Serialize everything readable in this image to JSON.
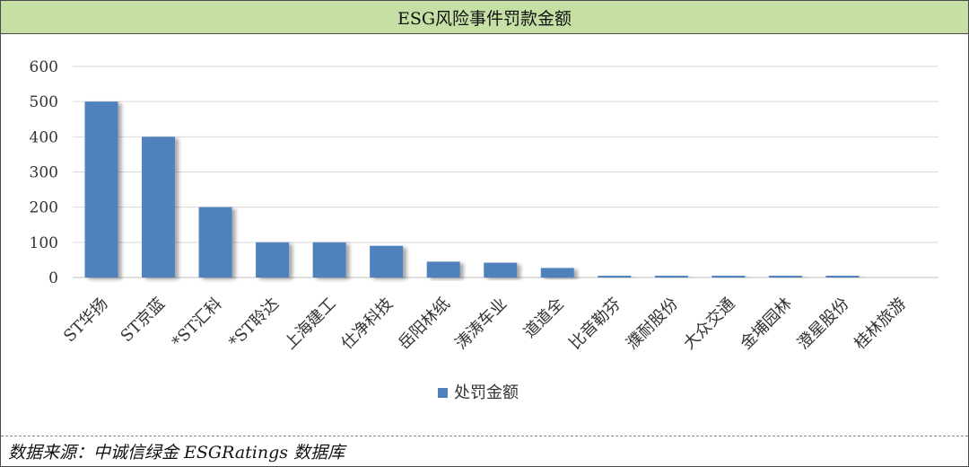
{
  "title": "ESG风险事件罚款金额",
  "source": "数据来源：中诚信绿金 ESGRatings 数据库",
  "chart_data": {
    "type": "bar",
    "title": "ESG风险事件罚款金额",
    "categories": [
      "ST华扬",
      "ST京蓝",
      "*ST汇科",
      "*ST聆达",
      "上海建工",
      "仕净科技",
      "岳阳林纸",
      "涛涛车业",
      "道道全",
      "比音勒芬",
      "濮耐股份",
      "大众交通",
      "金埔园林",
      "澄星股份",
      "桂林旅游"
    ],
    "series": [
      {
        "name": "处罚金额",
        "values": [
          500,
          400,
          200,
          100,
          100,
          90,
          45,
          42,
          27,
          5,
          5,
          5,
          5,
          5,
          0
        ],
        "color": "#4f81bd"
      }
    ],
    "ylim": [
      0,
      600
    ],
    "yticks": [
      0,
      100,
      200,
      300,
      400,
      500,
      600
    ],
    "grid": true,
    "legend_position": "bottom"
  }
}
